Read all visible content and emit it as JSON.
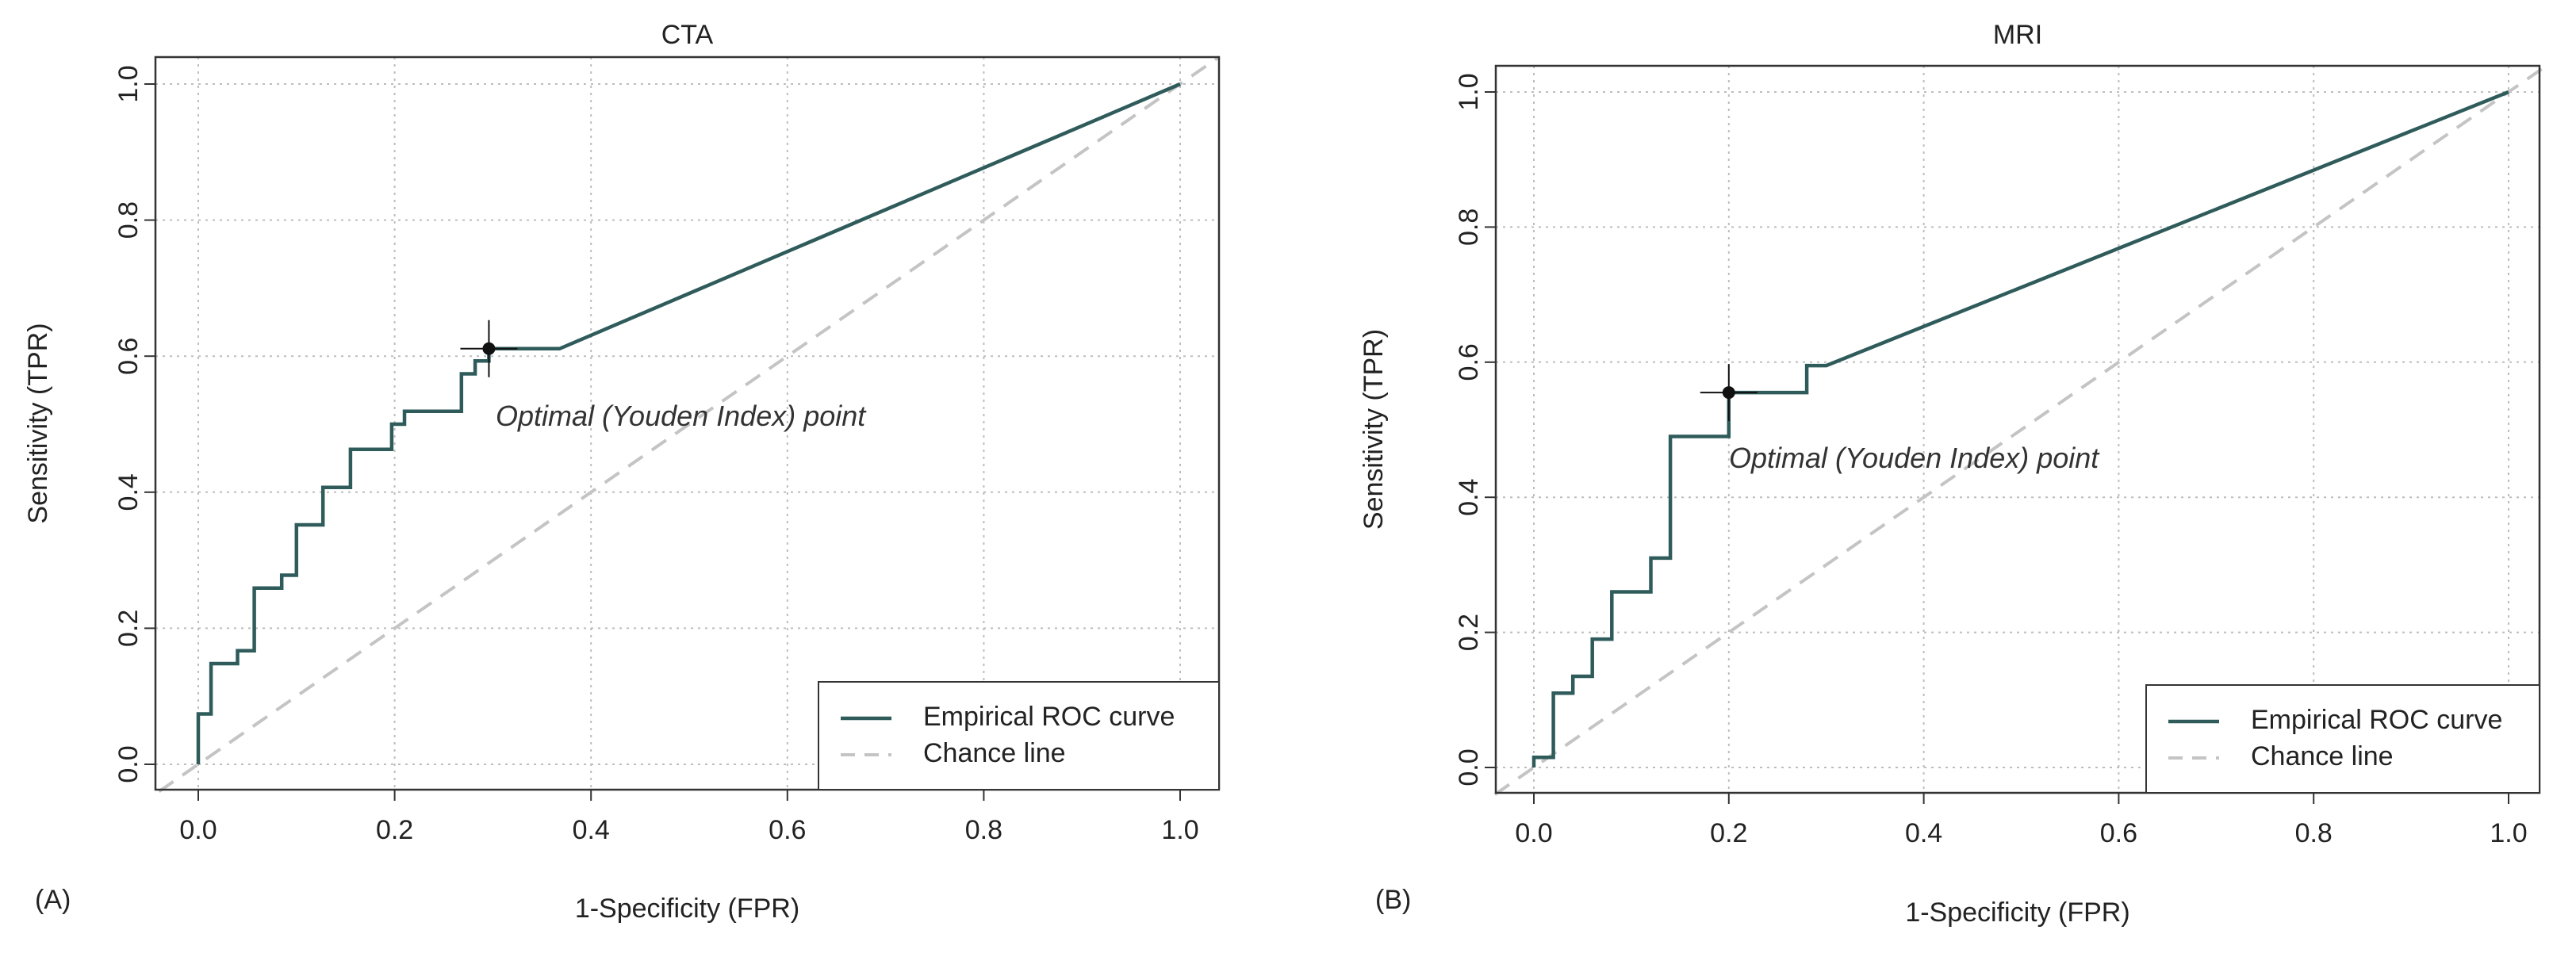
{
  "colors": {
    "roc": "#2f5b5b",
    "chance": "#c4c4c4",
    "grid": "#bdbdbd",
    "point": "#111111"
  },
  "chart_data": [
    {
      "type": "line",
      "panel_label": "(A)",
      "title": "CTA",
      "xlabel": "1-Specificity (FPR)",
      "ylabel": "Sensitivity (TPR)",
      "xlim": [
        -0.04,
        1.04
      ],
      "ylim": [
        -0.04,
        1.04
      ],
      "xticks": [
        "0.0",
        "0.2",
        "0.4",
        "0.6",
        "0.8",
        "1.0"
      ],
      "yticks": [
        "0.0",
        "0.2",
        "0.4",
        "0.6",
        "0.8",
        "1.0"
      ],
      "grid": true,
      "legend_position": "bottom-right",
      "series": [
        {
          "name": "Empirical ROC curve",
          "style": "solid",
          "x": [
            0.0,
            0.0,
            0.013,
            0.013,
            0.04,
            0.04,
            0.057,
            0.057,
            0.085,
            0.085,
            0.1,
            0.1,
            0.127,
            0.127,
            0.155,
            0.155,
            0.197,
            0.197,
            0.21,
            0.21,
            0.268,
            0.268,
            0.282,
            0.282,
            0.296,
            0.296,
            0.368,
            1.0
          ],
          "y": [
            0.0,
            0.074,
            0.074,
            0.148,
            0.148,
            0.167,
            0.167,
            0.259,
            0.259,
            0.278,
            0.278,
            0.352,
            0.352,
            0.407,
            0.407,
            0.463,
            0.463,
            0.5,
            0.5,
            0.519,
            0.519,
            0.574,
            0.574,
            0.593,
            0.593,
            0.611,
            0.611,
            1.0
          ]
        },
        {
          "name": "Chance line",
          "style": "dashed",
          "x": [
            -0.04,
            1.04
          ],
          "y": [
            -0.04,
            1.04
          ]
        }
      ],
      "optimal_point": {
        "x": 0.296,
        "y": 0.611
      },
      "annotation": "Optimal (Youden Index) point"
    },
    {
      "type": "line",
      "panel_label": "(B)",
      "title": "MRI",
      "xlabel": "1-Specificity (FPR)",
      "ylabel": "Sensitivity (TPR)",
      "xlim": [
        -0.04,
        1.04
      ],
      "ylim": [
        -0.04,
        1.04
      ],
      "xticks": [
        "0.0",
        "0.2",
        "0.4",
        "0.6",
        "0.8",
        "1.0"
      ],
      "yticks": [
        "0.0",
        "0.2",
        "0.4",
        "0.6",
        "0.8",
        "1.0"
      ],
      "grid": true,
      "legend_position": "bottom-right",
      "series": [
        {
          "name": "Empirical ROC curve",
          "style": "solid",
          "x": [
            0.0,
            0.0,
            0.02,
            0.02,
            0.04,
            0.04,
            0.06,
            0.06,
            0.08,
            0.08,
            0.12,
            0.12,
            0.14,
            0.14,
            0.2,
            0.2,
            0.28,
            0.28,
            0.3,
            1.0
          ],
          "y": [
            0.0,
            0.015,
            0.015,
            0.11,
            0.11,
            0.135,
            0.135,
            0.19,
            0.19,
            0.26,
            0.26,
            0.31,
            0.31,
            0.49,
            0.49,
            0.555,
            0.555,
            0.595,
            0.595,
            1.0
          ]
        },
        {
          "name": "Chance line",
          "style": "dashed",
          "x": [
            -0.04,
            1.04
          ],
          "y": [
            -0.04,
            1.04
          ]
        }
      ],
      "optimal_point": {
        "x": 0.2,
        "y": 0.555
      },
      "annotation": "Optimal (Youden Index) point"
    }
  ]
}
